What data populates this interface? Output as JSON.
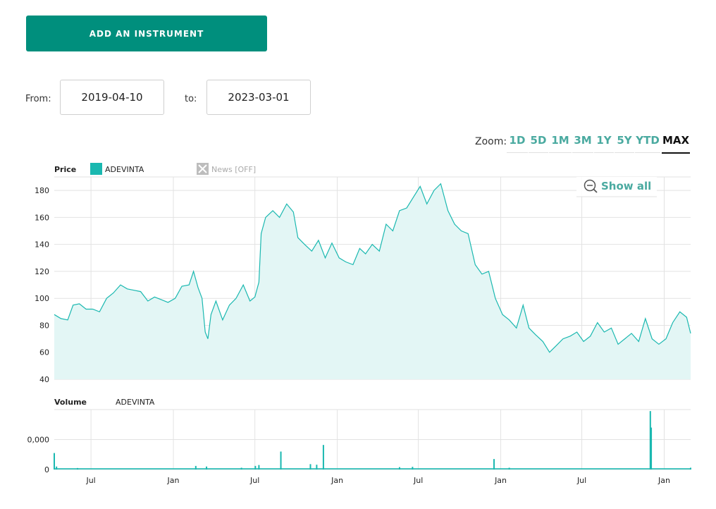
{
  "toolbar": {
    "add_instrument_label": "ADD AN INSTRUMENT"
  },
  "range": {
    "from_label": "From:",
    "from_value": "2019-04-10",
    "to_label": "to:",
    "to_value": "2023-03-01"
  },
  "zoom": {
    "label": "Zoom:",
    "options": [
      "1D",
      "5D",
      "1M",
      "3M",
      "1Y",
      "5Y",
      "YTD",
      "MAX"
    ],
    "active": "MAX"
  },
  "legend": {
    "price_label": "Price",
    "series_name": "ADEVINTA",
    "news_label": "News [OFF]",
    "volume_label": "Volume",
    "volume_series_name": "ADEVINTA",
    "show_all_label": "Show all"
  },
  "colors": {
    "accent": "#008f7d",
    "line": "#1ab8b0",
    "fill": "#e3f6f5",
    "volume": "#1ab8b0"
  },
  "chart_data": [
    {
      "type": "area",
      "title": "Price",
      "series": [
        {
          "name": "ADEVINTA",
          "points": [
            [
              "2019-04-10",
              88
            ],
            [
              "2019-04-25",
              85
            ],
            [
              "2019-05-10",
              84
            ],
            [
              "2019-05-22",
              95
            ],
            [
              "2019-06-05",
              96
            ],
            [
              "2019-06-20",
              92
            ],
            [
              "2019-07-05",
              92
            ],
            [
              "2019-07-20",
              90
            ],
            [
              "2019-08-05",
              100
            ],
            [
              "2019-08-20",
              104
            ],
            [
              "2019-09-05",
              110
            ],
            [
              "2019-09-20",
              107
            ],
            [
              "2019-10-05",
              106
            ],
            [
              "2019-10-20",
              105
            ],
            [
              "2019-11-05",
              98
            ],
            [
              "2019-11-20",
              101
            ],
            [
              "2019-12-05",
              99
            ],
            [
              "2019-12-20",
              97
            ],
            [
              "2020-01-05",
              100
            ],
            [
              "2020-01-20",
              109
            ],
            [
              "2020-02-05",
              110
            ],
            [
              "2020-02-15",
              120
            ],
            [
              "2020-02-25",
              108
            ],
            [
              "2020-03-05",
              100
            ],
            [
              "2020-03-12",
              75
            ],
            [
              "2020-03-18",
              70
            ],
            [
              "2020-03-25",
              88
            ],
            [
              "2020-04-05",
              98
            ],
            [
              "2020-04-20",
              84
            ],
            [
              "2020-05-05",
              95
            ],
            [
              "2020-05-20",
              100
            ],
            [
              "2020-06-05",
              110
            ],
            [
              "2020-06-20",
              98
            ],
            [
              "2020-07-01",
              101
            ],
            [
              "2020-07-10",
              112
            ],
            [
              "2020-07-15",
              148
            ],
            [
              "2020-07-25",
              160
            ],
            [
              "2020-08-10",
              165
            ],
            [
              "2020-08-25",
              160
            ],
            [
              "2020-09-10",
              170
            ],
            [
              "2020-09-25",
              164
            ],
            [
              "2020-10-05",
              145
            ],
            [
              "2020-10-20",
              140
            ],
            [
              "2020-11-05",
              135
            ],
            [
              "2020-11-20",
              143
            ],
            [
              "2020-12-05",
              130
            ],
            [
              "2020-12-20",
              141
            ],
            [
              "2021-01-05",
              130
            ],
            [
              "2021-01-20",
              127
            ],
            [
              "2021-02-05",
              125
            ],
            [
              "2021-02-20",
              137
            ],
            [
              "2021-03-05",
              133
            ],
            [
              "2021-03-20",
              140
            ],
            [
              "2021-04-05",
              135
            ],
            [
              "2021-04-20",
              155
            ],
            [
              "2021-05-05",
              150
            ],
            [
              "2021-05-20",
              165
            ],
            [
              "2021-06-05",
              167
            ],
            [
              "2021-06-20",
              175
            ],
            [
              "2021-07-05",
              183
            ],
            [
              "2021-07-20",
              170
            ],
            [
              "2021-08-05",
              180
            ],
            [
              "2021-08-20",
              185
            ],
            [
              "2021-09-05",
              165
            ],
            [
              "2021-09-20",
              155
            ],
            [
              "2021-10-05",
              150
            ],
            [
              "2021-10-20",
              148
            ],
            [
              "2021-11-05",
              125
            ],
            [
              "2021-11-20",
              118
            ],
            [
              "2021-12-05",
              120
            ],
            [
              "2021-12-20",
              100
            ],
            [
              "2022-01-05",
              88
            ],
            [
              "2022-01-20",
              84
            ],
            [
              "2022-02-05",
              78
            ],
            [
              "2022-02-20",
              95
            ],
            [
              "2022-03-05",
              78
            ],
            [
              "2022-03-20",
              73
            ],
            [
              "2022-04-05",
              68
            ],
            [
              "2022-04-20",
              60
            ],
            [
              "2022-05-05",
              65
            ],
            [
              "2022-05-20",
              70
            ],
            [
              "2022-06-05",
              72
            ],
            [
              "2022-06-20",
              75
            ],
            [
              "2022-07-05",
              68
            ],
            [
              "2022-07-20",
              72
            ],
            [
              "2022-08-05",
              82
            ],
            [
              "2022-08-20",
              75
            ],
            [
              "2022-09-05",
              78
            ],
            [
              "2022-09-20",
              66
            ],
            [
              "2022-10-05",
              70
            ],
            [
              "2022-10-20",
              74
            ],
            [
              "2022-11-05",
              68
            ],
            [
              "2022-11-20",
              85
            ],
            [
              "2022-12-05",
              70
            ],
            [
              "2022-12-20",
              66
            ],
            [
              "2023-01-05",
              70
            ],
            [
              "2023-01-20",
              82
            ],
            [
              "2023-02-05",
              90
            ],
            [
              "2023-02-20",
              86
            ],
            [
              "2023-03-01",
              74
            ]
          ]
        }
      ],
      "ylim": [
        40,
        190
      ],
      "yticks": [
        40,
        60,
        80,
        100,
        120,
        140,
        160,
        180
      ],
      "xticks": [
        [
          "2019-07-01",
          "Jul"
        ],
        [
          "2020-01-01",
          "Jan"
        ],
        [
          "2020-07-01",
          "Jul"
        ],
        [
          "2021-01-01",
          "Jan"
        ],
        [
          "2021-07-01",
          "Jul"
        ],
        [
          "2022-01-01",
          "Jan"
        ],
        [
          "2022-07-01",
          "Jul"
        ],
        [
          "2023-01-01",
          "Jan"
        ]
      ],
      "grid": true
    },
    {
      "type": "bar",
      "title": "Volume",
      "series": [
        {
          "name": "ADEVINTA",
          "points": [
            [
              "2019-04-10",
              0.55
            ],
            [
              "2019-04-15",
              0.1
            ],
            [
              "2019-06-01",
              0.05
            ],
            [
              "2020-02-20",
              0.12
            ],
            [
              "2020-03-15",
              0.1
            ],
            [
              "2020-06-01",
              0.06
            ],
            [
              "2020-07-02",
              0.12
            ],
            [
              "2020-07-10",
              0.15
            ],
            [
              "2020-08-28",
              0.6
            ],
            [
              "2020-11-02",
              0.18
            ],
            [
              "2020-11-16",
              0.16
            ],
            [
              "2020-12-01",
              0.82
            ],
            [
              "2021-05-20",
              0.08
            ],
            [
              "2021-06-18",
              0.09
            ],
            [
              "2021-12-17",
              0.35
            ],
            [
              "2022-01-20",
              0.06
            ],
            [
              "2022-12-01",
              1.95
            ],
            [
              "2022-12-03",
              1.4
            ],
            [
              "2023-03-01",
              0.06
            ]
          ]
        }
      ],
      "ylim": [
        0,
        2
      ],
      "yticks": [
        [
          0,
          "0"
        ],
        [
          1,
          "0,000"
        ]
      ],
      "xticks": [
        [
          "2019-07-01",
          "Jul"
        ],
        [
          "2020-01-01",
          "Jan"
        ],
        [
          "2020-07-01",
          "Jul"
        ],
        [
          "2021-01-01",
          "Jan"
        ],
        [
          "2021-07-01",
          "Jul"
        ],
        [
          "2022-01-01",
          "Jan"
        ],
        [
          "2022-07-01",
          "Jul"
        ],
        [
          "2023-01-01",
          "Jan"
        ]
      ],
      "grid": true
    }
  ]
}
